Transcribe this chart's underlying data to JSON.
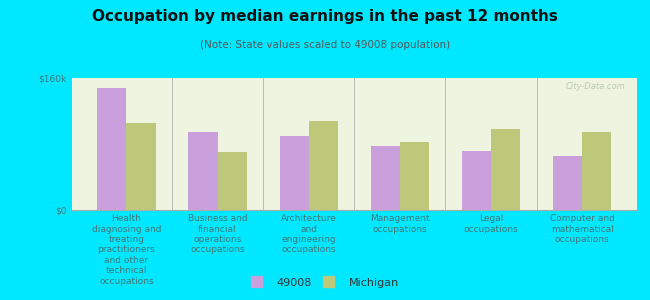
{
  "title": "Occupation by median earnings in the past 12 months",
  "subtitle": "(Note: State values scaled to 49008 population)",
  "categories": [
    "Health\ndiagnosing and\ntreating\npractitioners\nand other\ntechnical\noccupations",
    "Business and\nfinancial\noperations\noccupations",
    "Architecture\nand\nengineering\noccupations",
    "Management\noccupations",
    "Legal\noccupations",
    "Computer and\nmathematical\noccupations"
  ],
  "values_49008": [
    148000,
    95000,
    90000,
    78000,
    72000,
    65000
  ],
  "values_michigan": [
    105000,
    70000,
    108000,
    82000,
    98000,
    95000
  ],
  "color_49008": "#c9a0dc",
  "color_michigan": "#bec87a",
  "background_outer": "#00e8ff",
  "background_inner": "#eef4e0",
  "ylim": [
    0,
    160000
  ],
  "yticks": [
    0,
    160000
  ],
  "ytick_labels": [
    "$0",
    "$160k"
  ],
  "legend_label_49008": "49008",
  "legend_label_michigan": "Michigan",
  "watermark": "City-Data.com",
  "title_fontsize": 11,
  "subtitle_fontsize": 7.5,
  "axis_label_fontsize": 6.5,
  "legend_fontsize": 8
}
